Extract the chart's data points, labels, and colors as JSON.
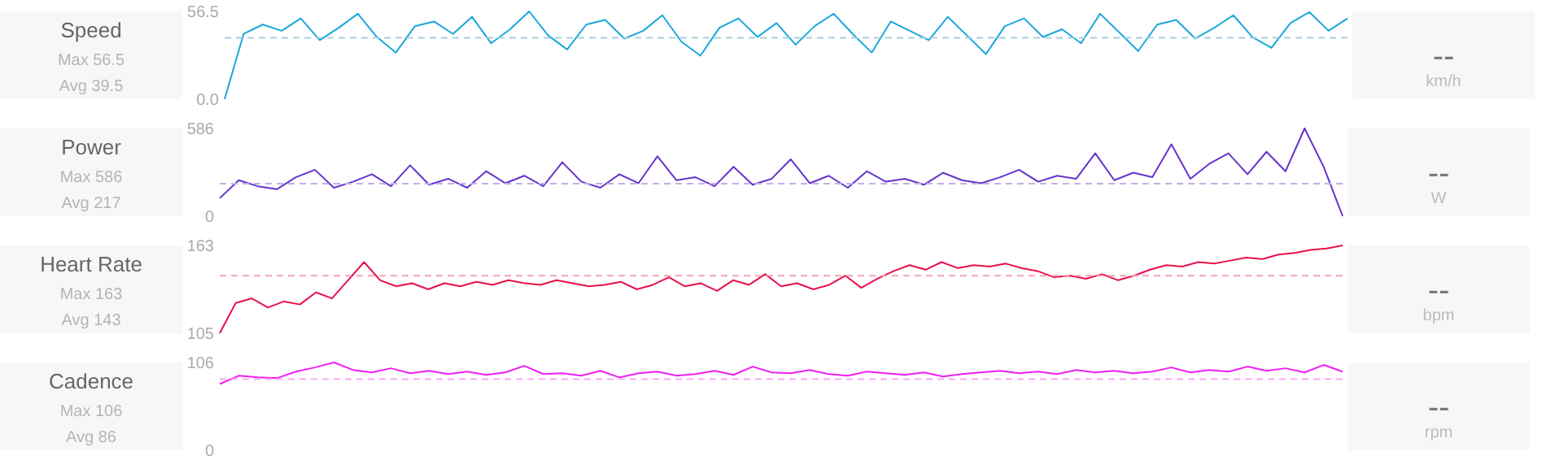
{
  "chart_data": [
    {
      "type": "line",
      "title": "Speed",
      "annotations": [
        "Max 56.5",
        "Avg 39.5",
        "--",
        "km/h"
      ],
      "categories": [
        null,
        null,
        null,
        null,
        null,
        null,
        null,
        null,
        null,
        null,
        null,
        null,
        null,
        null,
        null,
        null,
        null,
        null,
        null,
        null,
        null,
        null,
        null,
        null,
        null,
        null,
        null,
        null,
        null,
        null,
        null,
        null,
        null,
        null,
        null,
        null,
        null,
        null,
        null,
        null,
        null,
        null,
        null,
        null,
        null,
        null,
        null,
        null,
        null,
        null,
        null,
        null,
        null,
        null,
        null,
        null,
        null,
        null,
        null,
        null
      ],
      "series": [
        {
          "color": "#1aa7dc",
          "values": [
            0,
            42,
            48,
            44,
            52,
            38,
            46,
            55,
            40,
            30,
            47,
            50,
            42,
            53,
            36,
            45,
            56.5,
            41,
            32,
            48,
            51,
            39,
            44,
            54,
            37,
            28,
            46,
            52,
            40,
            49,
            35,
            47,
            55,
            42,
            30,
            50,
            44,
            38,
            53,
            41,
            29,
            47,
            52,
            40,
            45,
            36,
            55,
            43,
            31,
            48,
            51,
            39,
            46,
            54,
            40,
            33,
            49,
            56,
            44,
            52
          ]
        }
      ],
      "ylim": [
        0,
        56.5
      ],
      "yticks": [
        {
          "value": 0,
          "label": "0.0"
        },
        56.5
      ],
      "tick_labels": "y",
      "grid": false,
      "ref_lines": [
        {
          "axis": "y",
          "value": 39.5,
          "color": "#a9cfdc",
          "line_style": "dashed"
        }
      ]
    },
    {
      "type": "line",
      "title": "Power",
      "annotations": [
        "Max 586",
        "Avg 217",
        "--",
        "W"
      ],
      "categories": [
        null,
        null,
        null,
        null,
        null,
        null,
        null,
        null,
        null,
        null,
        null,
        null,
        null,
        null,
        null,
        null,
        null,
        null,
        null,
        null,
        null,
        null,
        null,
        null,
        null,
        null,
        null,
        null,
        null,
        null,
        null,
        null,
        null,
        null,
        null,
        null,
        null,
        null,
        null,
        null,
        null,
        null,
        null,
        null,
        null,
        null,
        null,
        null,
        null,
        null,
        null,
        null,
        null,
        null,
        null,
        null,
        null,
        null,
        null,
        null
      ],
      "series": [
        {
          "color": "#6633cc",
          "values": [
            120,
            240,
            200,
            180,
            260,
            310,
            190,
            230,
            280,
            200,
            340,
            210,
            250,
            190,
            300,
            220,
            270,
            200,
            360,
            230,
            190,
            280,
            220,
            400,
            240,
            260,
            200,
            330,
            210,
            250,
            380,
            220,
            270,
            190,
            300,
            230,
            250,
            210,
            290,
            240,
            220,
            260,
            310,
            230,
            270,
            250,
            420,
            240,
            290,
            260,
            480,
            250,
            350,
            420,
            280,
            430,
            300,
            586,
            330,
            0
          ]
        }
      ],
      "ylim": [
        0,
        586
      ],
      "yticks": [
        0,
        586
      ],
      "tick_labels": "y",
      "grid": false,
      "ref_lines": [
        {
          "axis": "y",
          "value": 217,
          "color": "#c2b0e6",
          "line_style": "dashed"
        }
      ]
    },
    {
      "type": "line",
      "title": "Heart Rate",
      "annotations": [
        "Max 163",
        "Avg 143",
        "--",
        "bpm"
      ],
      "categories": [
        null,
        null,
        null,
        null,
        null,
        null,
        null,
        null,
        null,
        null,
        null,
        null,
        null,
        null,
        null,
        null,
        null,
        null,
        null,
        null,
        null,
        null,
        null,
        null,
        null,
        null,
        null,
        null,
        null,
        null,
        null,
        null,
        null,
        null,
        null,
        null,
        null,
        null,
        null,
        null,
        null,
        null,
        null,
        null,
        null,
        null,
        null,
        null,
        null,
        null,
        null,
        null,
        null,
        null,
        null,
        null,
        null,
        null,
        null,
        null,
        null,
        null,
        null,
        null,
        null,
        null,
        null,
        null,
        null,
        null,
        null
      ],
      "series": [
        {
          "color": "#e8104a",
          "values": [
            105,
            125,
            128,
            122,
            126,
            124,
            132,
            128,
            140,
            152,
            140,
            136,
            138,
            134,
            138,
            136,
            139,
            137,
            140,
            138,
            137,
            140,
            138,
            136,
            137,
            139,
            134,
            137,
            142,
            136,
            138,
            133,
            140,
            137,
            144,
            136,
            138,
            134,
            137,
            143,
            135,
            141,
            146,
            150,
            147,
            152,
            148,
            150,
            149,
            151,
            148,
            146,
            142,
            143,
            141,
            144,
            140,
            143,
            147,
            150,
            149,
            152,
            151,
            153,
            155,
            154,
            157,
            158,
            160,
            161,
            163
          ]
        }
      ],
      "ylim": [
        105,
        163
      ],
      "yticks": [
        105,
        163
      ],
      "tick_labels": "y",
      "grid": false,
      "ref_lines": [
        {
          "axis": "y",
          "value": 143,
          "color": "#f3a3b8",
          "line_style": "dashed"
        }
      ]
    },
    {
      "type": "line",
      "title": "Cadence",
      "annotations": [
        "Max 106",
        "Avg 86",
        "--",
        "rpm"
      ],
      "categories": [
        null,
        null,
        null,
        null,
        null,
        null,
        null,
        null,
        null,
        null,
        null,
        null,
        null,
        null,
        null,
        null,
        null,
        null,
        null,
        null,
        null,
        null,
        null,
        null,
        null,
        null,
        null,
        null,
        null,
        null,
        null,
        null,
        null,
        null,
        null,
        null,
        null,
        null,
        null,
        null,
        null,
        null,
        null,
        null,
        null,
        null,
        null,
        null,
        null,
        null,
        null,
        null,
        null,
        null,
        null,
        null,
        null,
        null,
        null,
        null
      ],
      "series": [
        {
          "color": "#f01ef0",
          "values": [
            80,
            90,
            88,
            87,
            95,
            100,
            106,
            97,
            94,
            99,
            93,
            96,
            92,
            95,
            91,
            94,
            102,
            92,
            93,
            90,
            96,
            88,
            93,
            95,
            90,
            92,
            96,
            91,
            101,
            94,
            93,
            97,
            92,
            90,
            95,
            93,
            91,
            94,
            89,
            92,
            94,
            96,
            93,
            95,
            92,
            97,
            94,
            96,
            93,
            95,
            100,
            94,
            97,
            95,
            101,
            96,
            99,
            94,
            103,
            95
          ]
        }
      ],
      "ylim": [
        0,
        106
      ],
      "yticks": [
        0,
        106
      ],
      "tick_labels": "y",
      "grid": false,
      "ref_lines": [
        {
          "axis": "y",
          "value": 86,
          "color": "#f7a8f7",
          "line_style": "dashed"
        }
      ]
    }
  ]
}
